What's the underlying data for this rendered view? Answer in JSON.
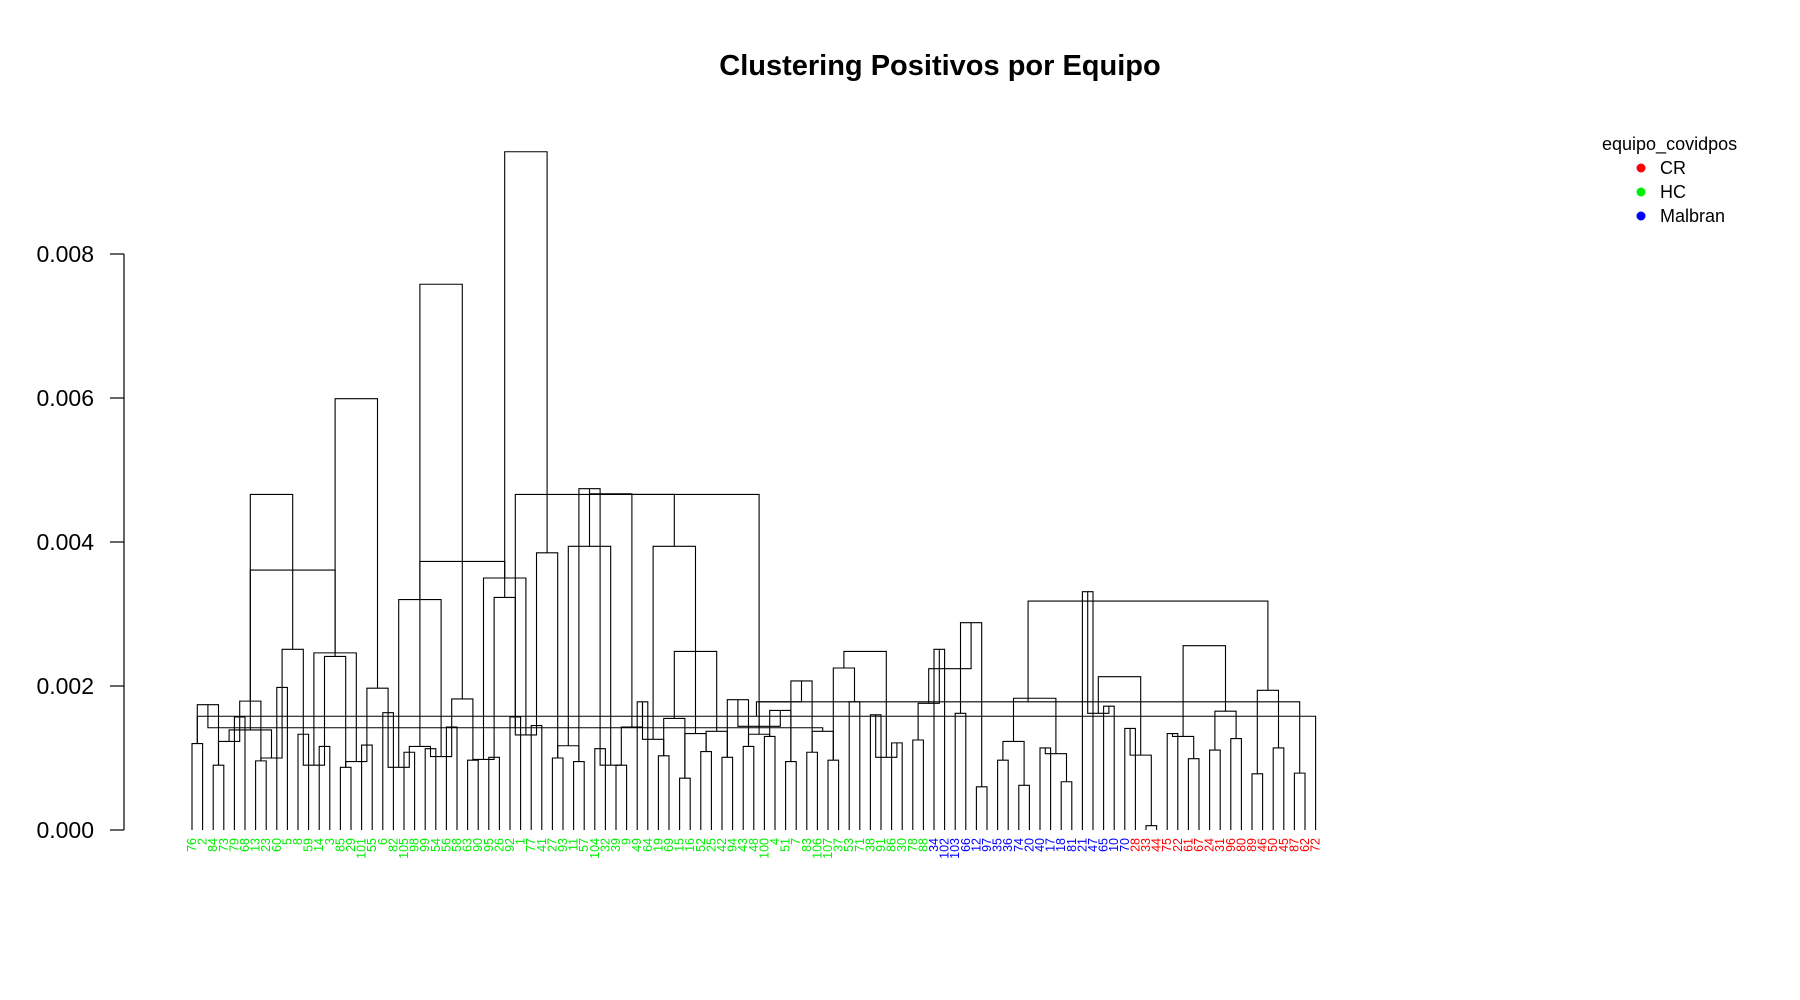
{
  "chart_data": {
    "type": "dendrogram",
    "title": "Clustering Positivos por Equipo",
    "xlabel": "",
    "ylabel": "",
    "ylim": [
      0,
      0.0095
    ],
    "y_ticks": [
      "0.000",
      "0.002",
      "0.004",
      "0.006",
      "0.008"
    ],
    "y_tick_values": [
      0,
      0.002,
      0.004,
      0.006,
      0.008
    ],
    "grid": false,
    "legend": {
      "title": "equipo_covidpos",
      "position": "top-right",
      "entries": [
        {
          "label": "CR",
          "color": "#ff0000"
        },
        {
          "label": "HC",
          "color": "#00ee00"
        },
        {
          "label": "Malbran",
          "color": "#0000ff"
        }
      ]
    },
    "group_colors": {
      "CR": "#ff0000",
      "HC": "#00ee00",
      "Malbran": "#0000ff"
    },
    "leaves": [
      {
        "label": "76",
        "group": "HC"
      },
      {
        "label": "2",
        "group": "HC"
      },
      {
        "label": "84",
        "group": "HC"
      },
      {
        "label": "73",
        "group": "HC"
      },
      {
        "label": "79",
        "group": "HC"
      },
      {
        "label": "68",
        "group": "HC"
      },
      {
        "label": "13",
        "group": "HC"
      },
      {
        "label": "23",
        "group": "HC"
      },
      {
        "label": "60",
        "group": "HC"
      },
      {
        "label": "5",
        "group": "HC"
      },
      {
        "label": "8",
        "group": "HC"
      },
      {
        "label": "59",
        "group": "HC"
      },
      {
        "label": "14",
        "group": "HC"
      },
      {
        "label": "3",
        "group": "HC"
      },
      {
        "label": "85",
        "group": "HC"
      },
      {
        "label": "29",
        "group": "HC"
      },
      {
        "label": "101",
        "group": "HC"
      },
      {
        "label": "55",
        "group": "HC"
      },
      {
        "label": "6",
        "group": "HC"
      },
      {
        "label": "82",
        "group": "HC"
      },
      {
        "label": "105",
        "group": "HC"
      },
      {
        "label": "98",
        "group": "HC"
      },
      {
        "label": "99",
        "group": "HC"
      },
      {
        "label": "54",
        "group": "HC"
      },
      {
        "label": "56",
        "group": "HC"
      },
      {
        "label": "58",
        "group": "HC"
      },
      {
        "label": "63",
        "group": "HC"
      },
      {
        "label": "90",
        "group": "HC"
      },
      {
        "label": "95",
        "group": "HC"
      },
      {
        "label": "26",
        "group": "HC"
      },
      {
        "label": "92",
        "group": "HC"
      },
      {
        "label": "1",
        "group": "HC"
      },
      {
        "label": "77",
        "group": "HC"
      },
      {
        "label": "41",
        "group": "HC"
      },
      {
        "label": "27",
        "group": "HC"
      },
      {
        "label": "93",
        "group": "HC"
      },
      {
        "label": "11",
        "group": "HC"
      },
      {
        "label": "57",
        "group": "HC"
      },
      {
        "label": "104",
        "group": "HC"
      },
      {
        "label": "32",
        "group": "HC"
      },
      {
        "label": "39",
        "group": "HC"
      },
      {
        "label": "9",
        "group": "HC"
      },
      {
        "label": "49",
        "group": "HC"
      },
      {
        "label": "64",
        "group": "HC"
      },
      {
        "label": "19",
        "group": "HC"
      },
      {
        "label": "69",
        "group": "HC"
      },
      {
        "label": "15",
        "group": "HC"
      },
      {
        "label": "16",
        "group": "HC"
      },
      {
        "label": "52",
        "group": "HC"
      },
      {
        "label": "25",
        "group": "HC"
      },
      {
        "label": "42",
        "group": "HC"
      },
      {
        "label": "94",
        "group": "HC"
      },
      {
        "label": "43",
        "group": "HC"
      },
      {
        "label": "48",
        "group": "HC"
      },
      {
        "label": "100",
        "group": "HC"
      },
      {
        "label": "4",
        "group": "HC"
      },
      {
        "label": "51",
        "group": "HC"
      },
      {
        "label": "7",
        "group": "HC"
      },
      {
        "label": "83",
        "group": "HC"
      },
      {
        "label": "106",
        "group": "HC"
      },
      {
        "label": "107",
        "group": "HC"
      },
      {
        "label": "37",
        "group": "HC"
      },
      {
        "label": "53",
        "group": "HC"
      },
      {
        "label": "71",
        "group": "HC"
      },
      {
        "label": "38",
        "group": "HC"
      },
      {
        "label": "91",
        "group": "HC"
      },
      {
        "label": "86",
        "group": "HC"
      },
      {
        "label": "30",
        "group": "HC"
      },
      {
        "label": "78",
        "group": "HC"
      },
      {
        "label": "88",
        "group": "HC"
      },
      {
        "label": "34",
        "group": "Malbran"
      },
      {
        "label": "102",
        "group": "Malbran"
      },
      {
        "label": "103",
        "group": "Malbran"
      },
      {
        "label": "66",
        "group": "Malbran"
      },
      {
        "label": "12",
        "group": "Malbran"
      },
      {
        "label": "97",
        "group": "Malbran"
      },
      {
        "label": "35",
        "group": "Malbran"
      },
      {
        "label": "36",
        "group": "Malbran"
      },
      {
        "label": "74",
        "group": "Malbran"
      },
      {
        "label": "20",
        "group": "Malbran"
      },
      {
        "label": "40",
        "group": "Malbran"
      },
      {
        "label": "17",
        "group": "Malbran"
      },
      {
        "label": "18",
        "group": "Malbran"
      },
      {
        "label": "81",
        "group": "Malbran"
      },
      {
        "label": "21",
        "group": "Malbran"
      },
      {
        "label": "47",
        "group": "Malbran"
      },
      {
        "label": "65",
        "group": "Malbran"
      },
      {
        "label": "10",
        "group": "Malbran"
      },
      {
        "label": "70",
        "group": "Malbran"
      },
      {
        "label": "28",
        "group": "CR"
      },
      {
        "label": "33",
        "group": "CR"
      },
      {
        "label": "44",
        "group": "CR"
      },
      {
        "label": "75",
        "group": "CR"
      },
      {
        "label": "22",
        "group": "CR"
      },
      {
        "label": "61",
        "group": "CR"
      },
      {
        "label": "67",
        "group": "CR"
      },
      {
        "label": "24",
        "group": "CR"
      },
      {
        "label": "31",
        "group": "CR"
      },
      {
        "label": "96",
        "group": "CR"
      },
      {
        "label": "80",
        "group": "CR"
      },
      {
        "label": "89",
        "group": "CR"
      },
      {
        "label": "46",
        "group": "CR"
      },
      {
        "label": "50",
        "group": "CR"
      },
      {
        "label": "45",
        "group": "CR"
      },
      {
        "label": "87",
        "group": "CR"
      },
      {
        "label": "62",
        "group": "CR"
      },
      {
        "label": "72",
        "group": "CR"
      }
    ],
    "merges": [
      [
        0,
        1,
        0.0012
      ],
      [
        2,
        3,
        0.0009
      ],
      [
        4,
        5,
        0.00157
      ],
      [
        6,
        7,
        0.00096
      ],
      [
        8,
        9,
        0.00198
      ],
      [
        10,
        11,
        0.00133
      ],
      [
        12,
        13,
        0.00116
      ],
      [
        14,
        15,
        0.00087
      ],
      [
        16,
        17,
        0.00118
      ],
      [
        18,
        19,
        0.00163
      ],
      [
        20,
        21,
        0.00108
      ],
      [
        22,
        23,
        0.00113
      ],
      [
        24,
        25,
        0.00143
      ],
      [
        26,
        27,
        0.00097
      ],
      [
        28,
        29,
        0.00101
      ],
      [
        30,
        31,
        0.00157
      ],
      [
        32,
        33,
        0.00145
      ],
      [
        34,
        35,
        0.001
      ],
      [
        36,
        37,
        0.00095
      ],
      [
        38,
        39,
        0.00113
      ],
      [
        40,
        41,
        0.0009
      ],
      [
        42,
        43,
        0.00178
      ],
      [
        44,
        45,
        0.00103
      ],
      [
        46,
        47,
        0.00072
      ],
      [
        48,
        49,
        0.00109
      ],
      [
        50,
        51,
        0.00101
      ],
      [
        52,
        53,
        0.00116
      ],
      [
        54,
        55,
        0.0013
      ],
      [
        56,
        57,
        0.00095
      ],
      [
        58,
        59,
        0.00108
      ],
      [
        60,
        61,
        0.00097
      ],
      [
        62,
        63,
        0.00178
      ],
      [
        64,
        65,
        0.0016
      ],
      [
        66,
        67,
        0.00121
      ],
      [
        68,
        69,
        0.00125
      ],
      [
        70,
        71,
        0.00251
      ],
      [
        72,
        73,
        0.00162
      ],
      [
        74,
        75,
        0.0006
      ],
      [
        76,
        77,
        0.00097
      ],
      [
        78,
        79,
        0.00062
      ],
      [
        80,
        81,
        0.00114
      ],
      [
        82,
        83,
        0.00067
      ],
      [
        84,
        85,
        0.00331
      ],
      [
        86,
        87,
        0.00172
      ],
      [
        88,
        89,
        0.00141
      ],
      [
        90,
        91,
        6e-05
      ],
      [
        92,
        93,
        0.00134
      ],
      [
        94,
        95,
        0.00099
      ],
      [
        96,
        97,
        0.00111
      ],
      [
        98,
        99,
        0.00127
      ],
      [
        100,
        101,
        0.00078
      ],
      [
        102,
        103,
        0.00114
      ],
      [
        104,
        105,
        0.00079
      ],
      [
        106,
        107,
        0.00158
      ],
      [
        108,
        109,
        0.00123
      ],
      [
        110,
        111,
        0.001
      ],
      [
        112,
        113,
        0.0009
      ],
      [
        114,
        115,
        0.00095
      ],
      [
        116,
        117,
        0.00087
      ],
      [
        118,
        119,
        0.00102
      ],
      [
        120,
        121,
        0.00098
      ],
      [
        122,
        123,
        0.00132
      ],
      [
        124,
        125,
        0.00117
      ],
      [
        126,
        127,
        0.0009
      ],
      [
        128,
        129,
        0.00126
      ],
      [
        130,
        131,
        0.00134
      ],
      [
        132,
        133,
        0.00181
      ],
      [
        134,
        135,
        0.00166
      ],
      [
        136,
        137,
        0.00137
      ]
    ],
    "groups": [
      [
        [
          0,
          1
        ],
        0.00174
      ],
      [
        [
          2,
          3
        ],
        0.00179
      ],
      [
        [
          4,
          5
        ],
        0.00251
      ],
      [
        [
          6,
          7
        ],
        0.00241
      ],
      [
        [
          8,
          9
        ],
        0.00197
      ],
      [
        [
          10,
          11
        ],
        0.00116
      ],
      [
        [
          12,
          13
        ],
        0.00182
      ],
      [
        [
          14,
          15
        ],
        0.00323
      ],
      [
        [
          16,
          17
        ],
        0.00385
      ],
      [
        [
          18,
          19
        ],
        0.00474
      ],
      [
        [
          20,
          21
        ],
        0.00143
      ],
      [
        [
          22,
          23
        ],
        0.00155
      ],
      [
        [
          24,
          25
        ],
        0.00137
      ],
      [
        [
          26,
          27
        ],
        0.00133
      ],
      [
        [
          28,
          29
        ],
        0.00207
      ],
      [
        [
          30,
          31
        ],
        0.00225
      ],
      [
        [
          32,
          33
        ],
        0.00101
      ],
      [
        [
          34,
          35
        ],
        0.00176
      ],
      [
        [
          36,
          37
        ],
        0.00288
      ],
      [
        [
          38,
          39
        ],
        0.00123
      ],
      [
        [
          40,
          41
        ],
        0.00106
      ],
      [
        [
          42,
          43
        ],
        0.00162
      ],
      [
        [
          44,
          45
        ],
        0.00104
      ],
      [
        [
          46,
          47
        ],
        0.0013
      ],
      [
        [
          48,
          49
        ],
        0.00165
      ],
      [
        [
          50,
          51
        ],
        0.00194
      ],
      [
        [
          52,
          53
        ],
        0.00178
      ],
      [
        [
          54,
          55
        ],
        0.00139
      ],
      [
        [
          56,
          57
        ],
        0.00246
      ],
      [
        [
          58,
          59
        ],
        0.0032
      ],
      [
        [
          60,
          61
        ],
        0.0035
      ],
      [
        [
          62,
          63
        ],
        0.00394
      ],
      [
        [
          64,
          65
        ],
        0.00394
      ],
      [
        [
          66,
          67
        ],
        0.00144
      ],
      [
        [
          68,
          69
        ],
        0.00142
      ],
      [
        [
          70,
          71
        ],
        0.00466
      ],
      [
        [
          72,
          73
        ],
        0.00599
      ],
      [
        [
          74,
          75
        ],
        0.00758
      ],
      [
        [
          76,
          77
        ],
        0.00942
      ],
      [
        [
          78,
          79
        ],
        0.00467
      ],
      [
        [
          80,
          81
        ],
        0.00248
      ],
      [
        [
          82,
          83
        ],
        0.00178
      ],
      [
        [
          84,
          85
        ],
        0.00248
      ],
      [
        [
          86,
          87
        ],
        0.00224
      ],
      [
        [
          88,
          89
        ],
        0.00183
      ],
      [
        [
          90,
          91
        ],
        0.00213
      ],
      [
        [
          92,
          93
        ],
        0.00256
      ],
      [
        [
          94,
          95
        ],
        0.00318
      ],
      [
        [
          96,
          97
        ],
        0.00361
      ],
      [
        [
          98,
          99
        ],
        0.00373
      ],
      [
        [
          100,
          101
        ],
        0.00466
      ],
      [
        [
          102,
          103
        ],
        0.00466
      ]
    ]
  }
}
